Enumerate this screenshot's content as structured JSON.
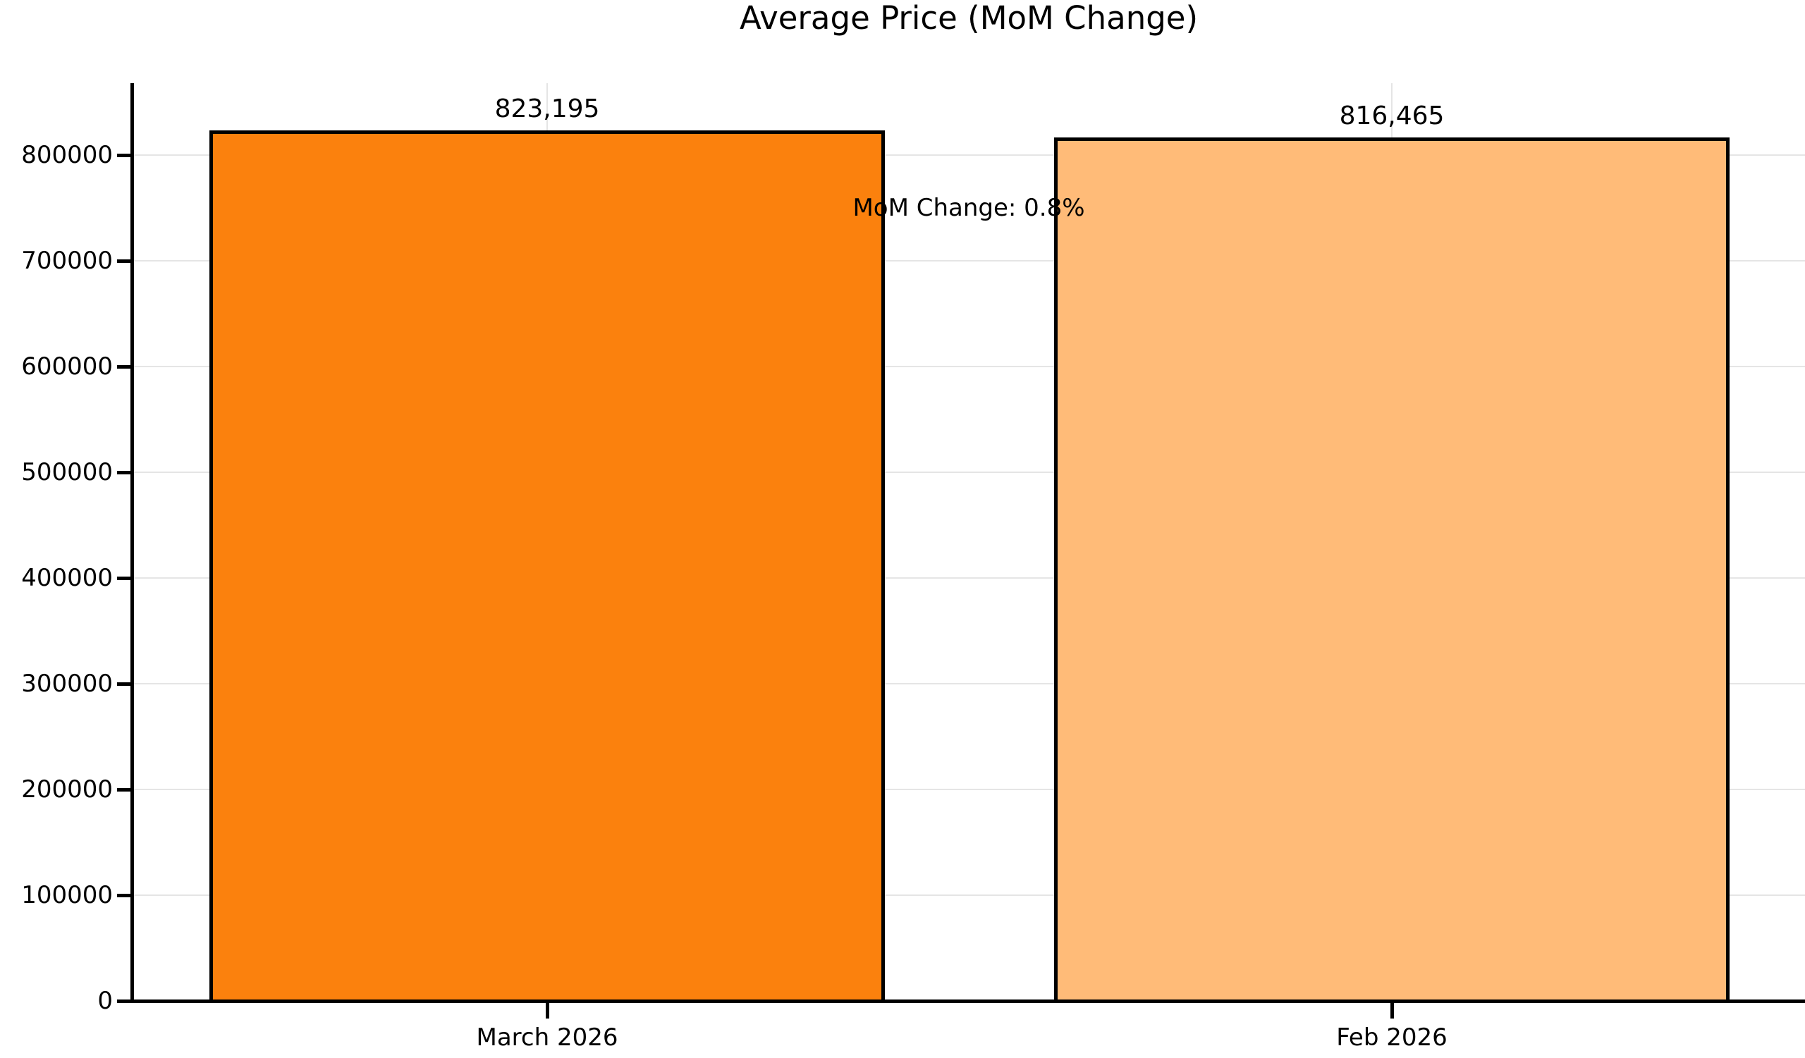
{
  "chart_data": {
    "type": "bar",
    "title": "Average Price (MoM Change)",
    "categories": [
      "March 2026",
      "Feb 2026"
    ],
    "values": [
      823195,
      816465
    ],
    "value_labels": [
      "823,195",
      "816,465"
    ],
    "series_colors": [
      "#fb810d",
      "#ffbb78"
    ],
    "bar_edge_color": "#000000",
    "annotation": {
      "text": "MoM Change: 0.8%",
      "x": 0.5,
      "y": 750000
    },
    "xlabel": "",
    "ylabel": "",
    "ylim": [
      0,
      868000
    ],
    "yticks": [
      0,
      100000,
      200000,
      300000,
      400000,
      500000,
      600000,
      700000,
      800000
    ],
    "grid": true,
    "grid_color": "#e5e5e5",
    "legend": null,
    "background": "#ffffff"
  }
}
